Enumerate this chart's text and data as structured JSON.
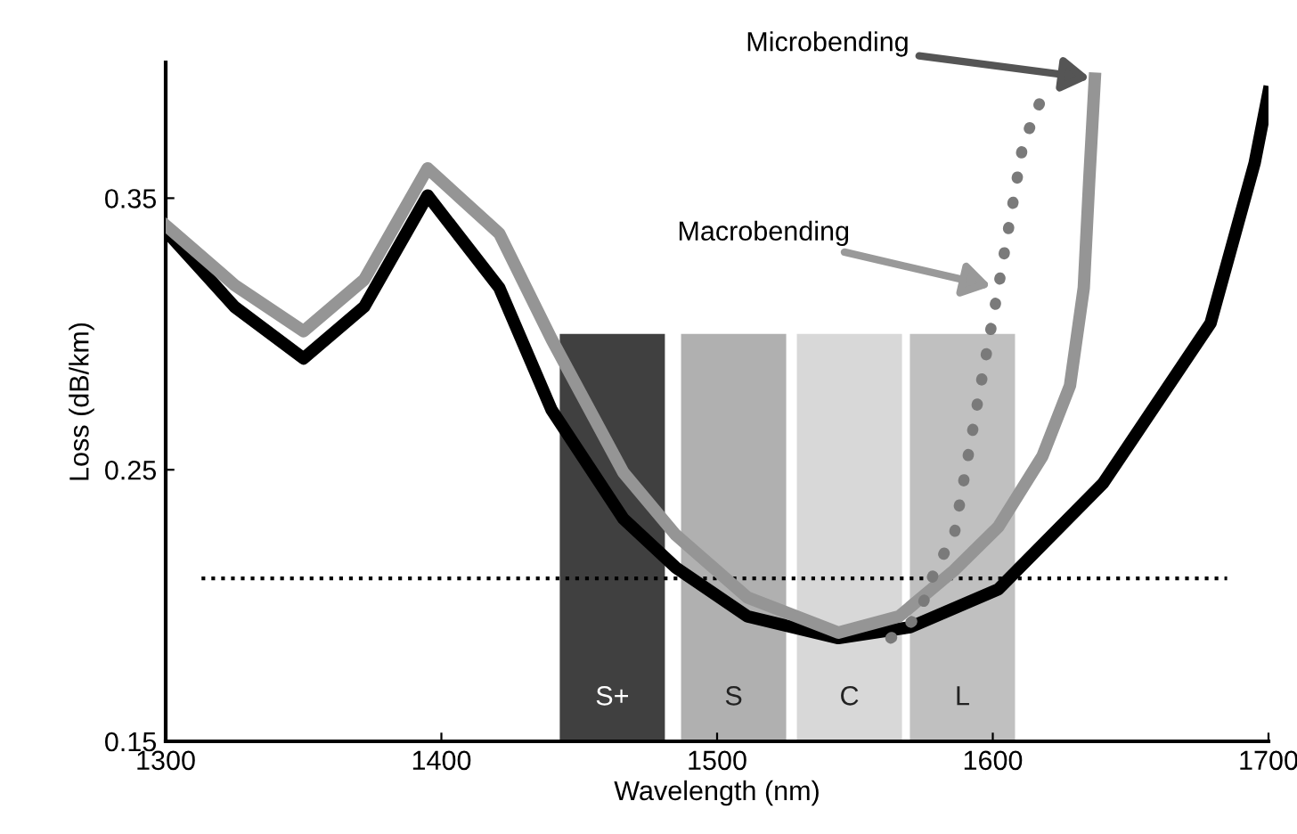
{
  "chart_data": {
    "type": "line",
    "xlabel": "Wavelength (nm)",
    "ylabel": "Loss (dB/km)",
    "xlim": [
      1300,
      1700
    ],
    "ylim": [
      0.15,
      0.4
    ],
    "xticks": [
      1300,
      1400,
      1500,
      1600,
      1700
    ],
    "yticks": [
      0.15,
      0.25,
      0.35
    ],
    "grid": false,
    "series": [
      {
        "type": "bar",
        "x": [
          1462,
          1506,
          1548,
          1589
        ],
        "values": [
          0.15,
          0.15,
          0.15,
          0.15
        ],
        "base": [
          0.15,
          0.15,
          0.15,
          0.15
        ],
        "colors": [
          "#404040",
          "#b0b0b0",
          "#d8d8d8",
          "#c0c0c0"
        ]
      },
      {
        "color": "#000000",
        "line_style": "dotted",
        "x": [
          1313,
          1685
        ],
        "values": [
          0.21,
          0.21
        ]
      },
      {
        "color": "#000000",
        "line_style": "solid",
        "x": [
          1300,
          1325,
          1350,
          1372,
          1395,
          1421,
          1440,
          1466,
          1485,
          1511,
          1544,
          1570,
          1602,
          1640,
          1679,
          1695,
          1700
        ],
        "values": [
          0.338,
          0.31,
          0.291,
          0.31,
          0.351,
          0.317,
          0.272,
          0.232,
          0.214,
          0.196,
          0.188,
          0.192,
          0.206,
          0.245,
          0.304,
          0.363,
          0.389
        ]
      },
      {
        "color": "#959595",
        "line_style": "solid",
        "x": [
          1300,
          1325,
          1350,
          1372,
          1395,
          1421,
          1440,
          1466,
          1485,
          1511,
          1544,
          1566,
          1586,
          1602,
          1618,
          1628,
          1633,
          1635,
          1637
        ],
        "values": [
          0.34,
          0.318,
          0.301,
          0.32,
          0.361,
          0.337,
          0.298,
          0.249,
          0.226,
          0.203,
          0.19,
          0.196,
          0.213,
          0.229,
          0.255,
          0.281,
          0.317,
          0.357,
          0.394
        ]
      },
      {
        "color": "#7a7a7a",
        "line_style": "dotted",
        "x": [
          1563,
          1573,
          1579,
          1586,
          1594,
          1602,
          1611,
          1619
        ],
        "values": [
          0.188,
          0.196,
          0.213,
          0.226,
          0.272,
          0.317,
          0.37,
          0.39
        ]
      }
    ],
    "annotations": [
      "S+",
      "S",
      "C",
      "L",
      {
        "text": "Microbending",
        "x": 1637,
        "y": 0.394
      },
      {
        "text": "Macrobending",
        "x": 1602,
        "y": 0.317
      }
    ]
  }
}
